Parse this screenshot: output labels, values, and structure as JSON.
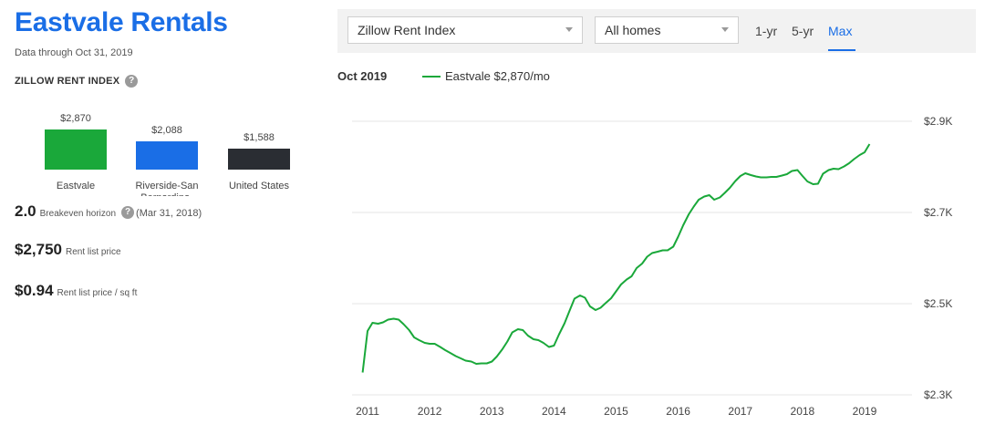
{
  "page": {
    "title": "Eastvale Rentals",
    "subtitle": "Data through Oct 31, 2019",
    "index_label": "ZILLOW RENT INDEX",
    "help_glyph": "?"
  },
  "comparison_bars": [
    {
      "label": "$2,870",
      "name": "Eastvale",
      "value": 2870,
      "color": "#1aa83a"
    },
    {
      "label": "$2,088",
      "name": "Riverside-San Bernardino-",
      "value": 2088,
      "color": "#1a6ee6"
    },
    {
      "label": "$1,588",
      "name": "United States",
      "value": 1588,
      "color": "#2a2d33"
    }
  ],
  "stats": {
    "breakeven": {
      "value": "2.0",
      "label": "Breakeven horizon",
      "date": "(Mar 31, 2018)"
    },
    "rent_list": {
      "value": "$2,750",
      "label": "Rent list price"
    },
    "rent_sqft": {
      "value": "$0.94",
      "label": "Rent list price / sq ft"
    }
  },
  "toolbar": {
    "index_select": "Zillow Rent Index",
    "home_select": "All homes",
    "ranges": [
      "1-yr",
      "5-yr",
      "Max"
    ],
    "active_range": "Max"
  },
  "legend": {
    "date": "Oct 2019",
    "series_label": "Eastvale $2,870/mo",
    "color": "#1aa83a"
  },
  "chart_data": {
    "type": "line",
    "title": "",
    "xlabel": "",
    "ylabel": "",
    "y_ticks": [
      {
        "value": 2300,
        "label": "$2.3K"
      },
      {
        "value": 2500,
        "label": "$2.5K"
      },
      {
        "value": 2700,
        "label": "$2.7K"
      },
      {
        "value": 2900,
        "label": "$2.9K"
      }
    ],
    "x_ticks": [
      {
        "value": 2011,
        "label": "2011"
      },
      {
        "value": 2012,
        "label": "2012"
      },
      {
        "value": 2013,
        "label": "2013"
      },
      {
        "value": 2014,
        "label": "2014"
      },
      {
        "value": 2015,
        "label": "2015"
      },
      {
        "value": 2016,
        "label": "2016"
      },
      {
        "value": 2017,
        "label": "2017"
      },
      {
        "value": 2018,
        "label": "2018"
      },
      {
        "value": 2019,
        "label": "2019"
      }
    ],
    "xlim": [
      2010.85,
      2019.85
    ],
    "ylim": [
      2300,
      2900
    ],
    "grid": true,
    "series": [
      {
        "name": "Eastvale",
        "color": "#1aa83a",
        "points": [
          [
            2010.92,
            2349
          ],
          [
            2011.0,
            2440
          ],
          [
            2011.08,
            2458
          ],
          [
            2011.17,
            2456
          ],
          [
            2011.25,
            2459
          ],
          [
            2011.33,
            2465
          ],
          [
            2011.42,
            2467
          ],
          [
            2011.5,
            2465
          ],
          [
            2011.58,
            2455
          ],
          [
            2011.67,
            2442
          ],
          [
            2011.75,
            2426
          ],
          [
            2011.83,
            2420
          ],
          [
            2011.92,
            2414
          ],
          [
            2012.0,
            2412
          ],
          [
            2012.08,
            2412
          ],
          [
            2012.17,
            2405
          ],
          [
            2012.25,
            2398
          ],
          [
            2012.33,
            2392
          ],
          [
            2012.42,
            2385
          ],
          [
            2012.5,
            2380
          ],
          [
            2012.58,
            2375
          ],
          [
            2012.67,
            2373
          ],
          [
            2012.75,
            2368
          ],
          [
            2012.83,
            2369
          ],
          [
            2012.92,
            2369
          ],
          [
            2013.0,
            2373
          ],
          [
            2013.08,
            2384
          ],
          [
            2013.17,
            2400
          ],
          [
            2013.25,
            2417
          ],
          [
            2013.33,
            2437
          ],
          [
            2013.42,
            2444
          ],
          [
            2013.5,
            2442
          ],
          [
            2013.58,
            2430
          ],
          [
            2013.67,
            2422
          ],
          [
            2013.75,
            2420
          ],
          [
            2013.83,
            2414
          ],
          [
            2013.92,
            2405
          ],
          [
            2014.0,
            2408
          ],
          [
            2014.08,
            2432
          ],
          [
            2014.17,
            2457
          ],
          [
            2014.25,
            2484
          ],
          [
            2014.33,
            2511
          ],
          [
            2014.42,
            2518
          ],
          [
            2014.5,
            2513
          ],
          [
            2014.58,
            2494
          ],
          [
            2014.67,
            2486
          ],
          [
            2014.75,
            2491
          ],
          [
            2014.83,
            2501
          ],
          [
            2014.92,
            2512
          ],
          [
            2015.0,
            2527
          ],
          [
            2015.08,
            2542
          ],
          [
            2015.17,
            2553
          ],
          [
            2015.25,
            2560
          ],
          [
            2015.33,
            2578
          ],
          [
            2015.42,
            2588
          ],
          [
            2015.5,
            2603
          ],
          [
            2015.58,
            2611
          ],
          [
            2015.67,
            2614
          ],
          [
            2015.75,
            2617
          ],
          [
            2015.83,
            2617
          ],
          [
            2015.92,
            2625
          ],
          [
            2016.0,
            2647
          ],
          [
            2016.08,
            2672
          ],
          [
            2016.17,
            2696
          ],
          [
            2016.25,
            2713
          ],
          [
            2016.33,
            2728
          ],
          [
            2016.42,
            2735
          ],
          [
            2016.5,
            2738
          ],
          [
            2016.58,
            2728
          ],
          [
            2016.67,
            2733
          ],
          [
            2016.75,
            2743
          ],
          [
            2016.83,
            2754
          ],
          [
            2016.92,
            2769
          ],
          [
            2017.0,
            2780
          ],
          [
            2017.08,
            2786
          ],
          [
            2017.17,
            2782
          ],
          [
            2017.25,
            2779
          ],
          [
            2017.33,
            2777
          ],
          [
            2017.42,
            2777
          ],
          [
            2017.5,
            2778
          ],
          [
            2017.58,
            2778
          ],
          [
            2017.67,
            2781
          ],
          [
            2017.75,
            2784
          ],
          [
            2017.83,
            2791
          ],
          [
            2017.92,
            2793
          ],
          [
            2018.0,
            2780
          ],
          [
            2018.08,
            2768
          ],
          [
            2018.17,
            2762
          ],
          [
            2018.25,
            2763
          ],
          [
            2018.33,
            2785
          ],
          [
            2018.42,
            2793
          ],
          [
            2018.5,
            2796
          ],
          [
            2018.58,
            2795
          ],
          [
            2018.67,
            2801
          ],
          [
            2018.75,
            2808
          ],
          [
            2018.83,
            2817
          ],
          [
            2018.92,
            2826
          ],
          [
            2019.0,
            2832
          ],
          [
            2019.08,
            2850
          ]
        ]
      }
    ]
  }
}
